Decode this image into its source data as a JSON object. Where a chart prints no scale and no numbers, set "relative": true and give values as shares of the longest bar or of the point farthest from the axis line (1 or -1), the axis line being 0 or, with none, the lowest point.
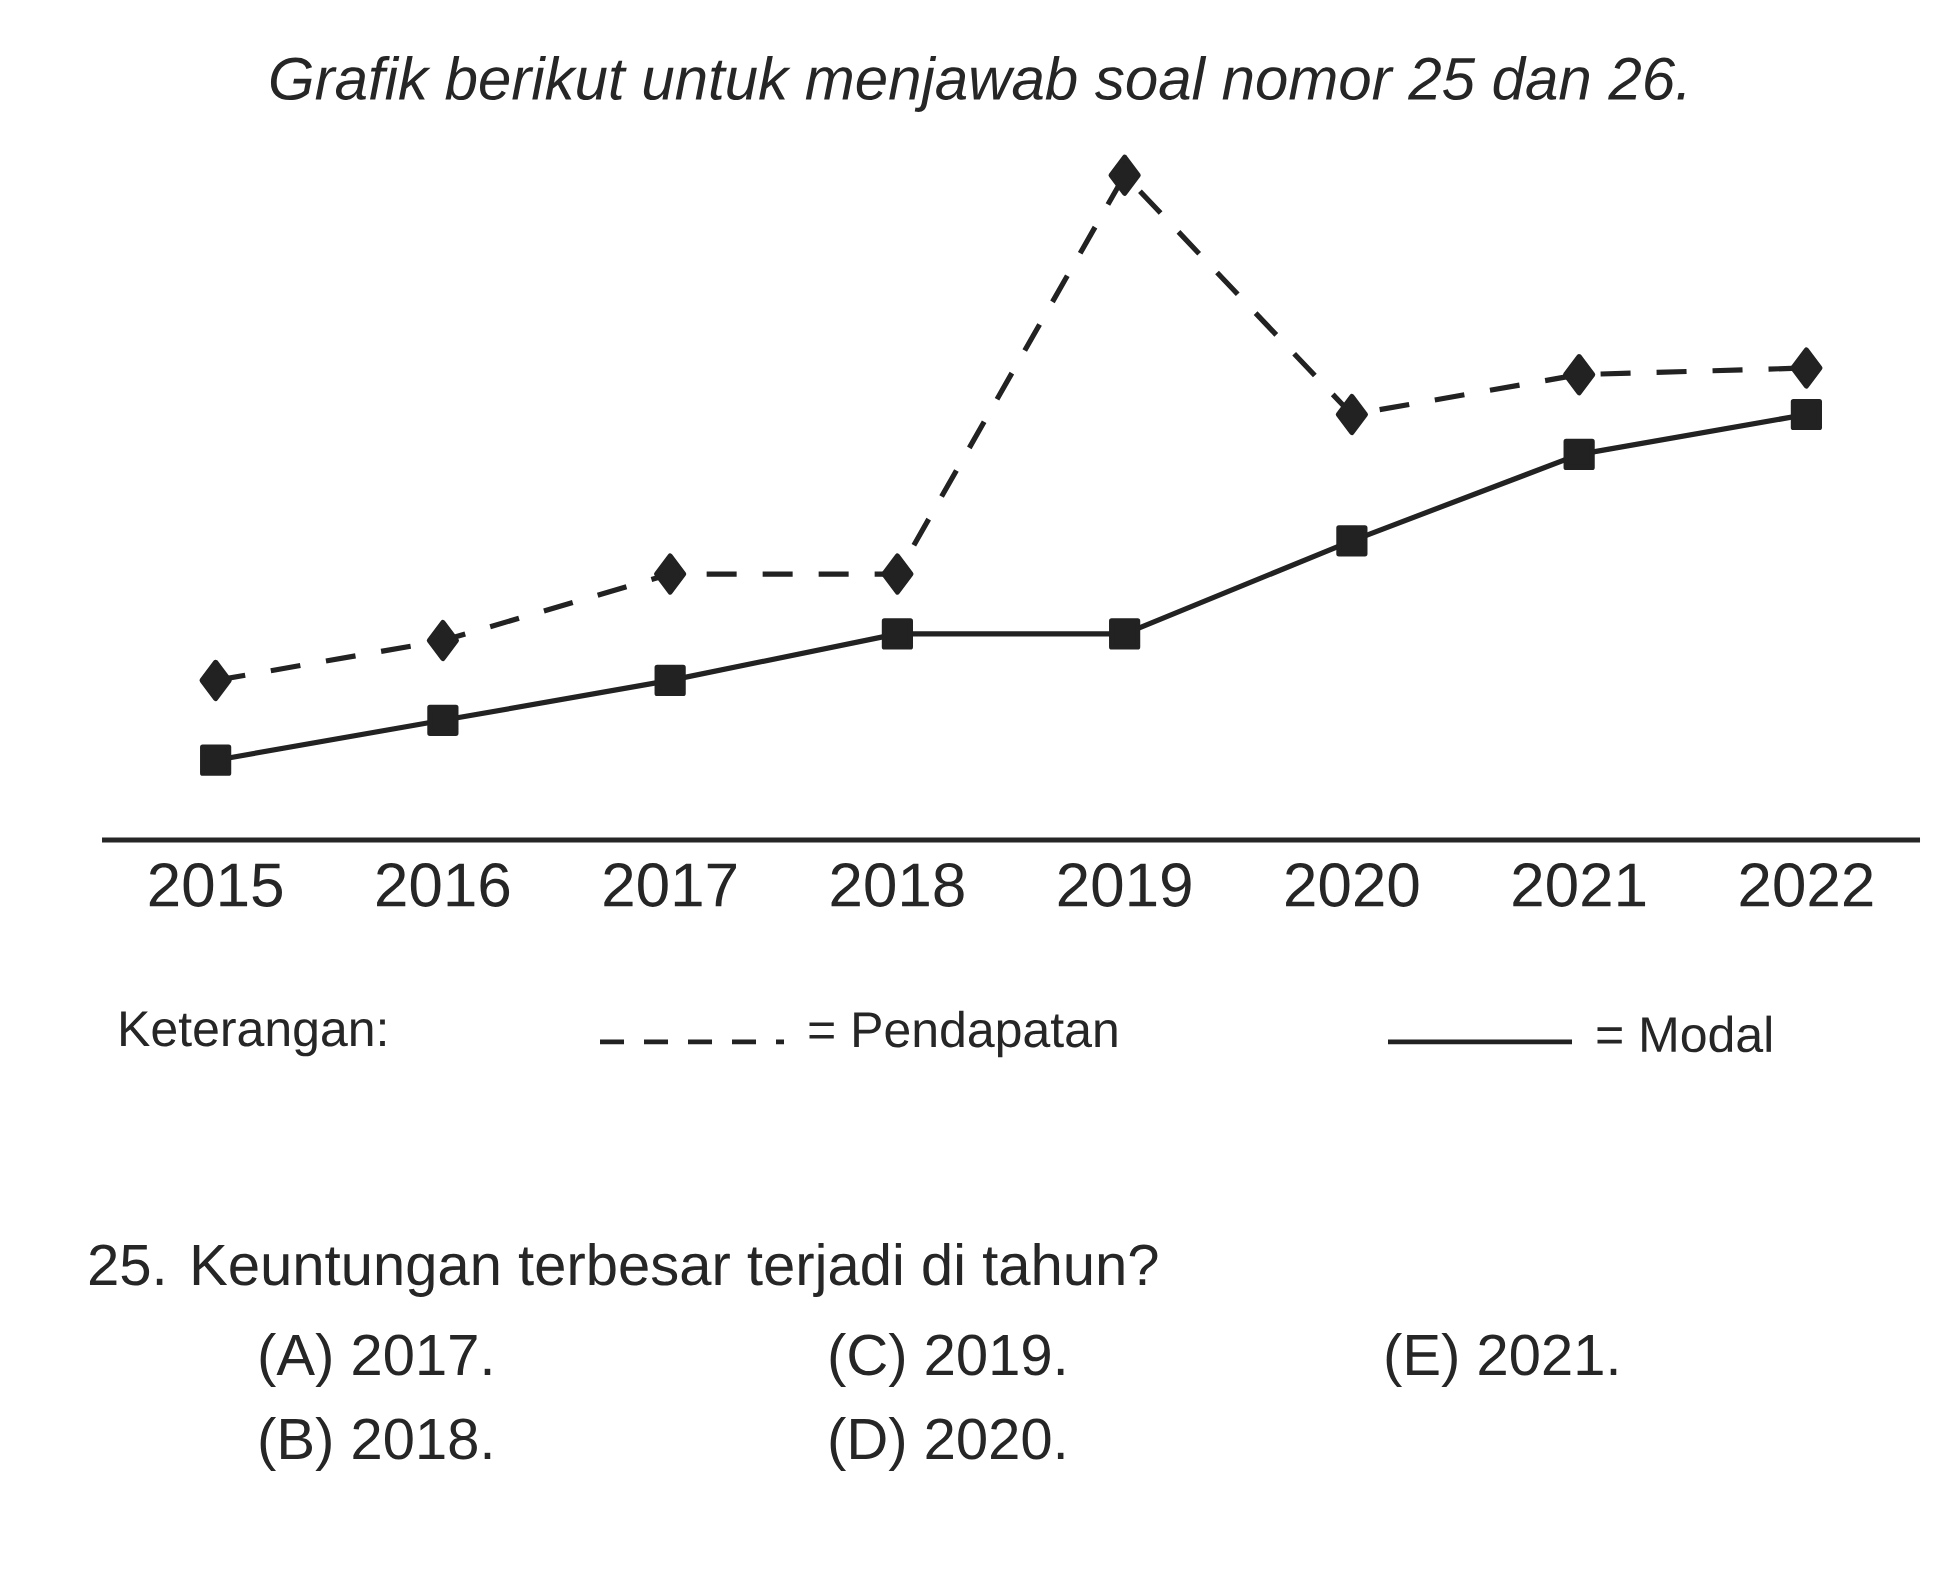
{
  "chart_data": {
    "type": "line",
    "title": "*Grafik berikut untuk menjawab soal nomor 25 dan 26.*",
    "relative": true,
    "categories": [
      "2015",
      "2016",
      "2017",
      "2018",
      "2019",
      "2020",
      "2021",
      "2022"
    ],
    "series": [
      {
        "name": "= Pendapatan",
        "color": "#222222",
        "marker": "diamond",
        "line_style": "dashed",
        "values": [
          0.24,
          0.3,
          0.4,
          0.4,
          1,
          0.64,
          0.7,
          0.71
        ]
      },
      {
        "name": "= Modal",
        "color": "#222222",
        "marker": "square",
        "line_style": "solid",
        "values": [
          0.12,
          0.18,
          0.24,
          0.31,
          0.31,
          0.45,
          0.58,
          0.64
        ]
      }
    ],
    "legend": "bottom",
    "legend_title": "Keterangan:",
    "annotations": [
      "25. Keuntungan terbesar terjadi di tahun?",
      "(A) 2017.",
      "(B) 2018.",
      "(C) 2019.",
      "(D) 2020.",
      "(E) 2021."
    ]
  }
}
